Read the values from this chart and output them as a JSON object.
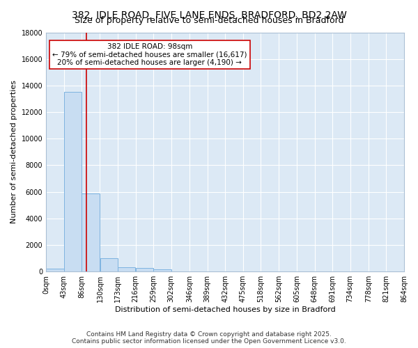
{
  "title": "382, IDLE ROAD, FIVE LANE ENDS, BRADFORD, BD2 2AW",
  "subtitle": "Size of property relative to semi-detached houses in Bradford",
  "xlabel": "Distribution of semi-detached houses by size in Bradford",
  "ylabel": "Number of semi-detached properties",
  "bin_edges": [
    0,
    43,
    86,
    130,
    173,
    216,
    259,
    302,
    346,
    389,
    432,
    475,
    518,
    562,
    605,
    648,
    691,
    734,
    778,
    821,
    864
  ],
  "bin_labels": [
    "0sqm",
    "43sqm",
    "86sqm",
    "130sqm",
    "173sqm",
    "216sqm",
    "259sqm",
    "302sqm",
    "346sqm",
    "389sqm",
    "432sqm",
    "475sqm",
    "518sqm",
    "562sqm",
    "605sqm",
    "648sqm",
    "691sqm",
    "734sqm",
    "778sqm",
    "821sqm",
    "864sqm"
  ],
  "bar_heights": [
    200,
    13500,
    5900,
    1000,
    300,
    290,
    150,
    0,
    0,
    0,
    0,
    0,
    0,
    0,
    0,
    0,
    0,
    0,
    0,
    0
  ],
  "bar_color": "#c8ddf2",
  "bar_edge_color": "#7db3e0",
  "property_size": 98,
  "vline_color": "#cc0000",
  "ylim": [
    0,
    18000
  ],
  "yticks": [
    0,
    2000,
    4000,
    6000,
    8000,
    10000,
    12000,
    14000,
    16000,
    18000
  ],
  "annotation_text": "382 IDLE ROAD: 98sqm\n← 79% of semi-detached houses are smaller (16,617)\n20% of semi-detached houses are larger (4,190) →",
  "annotation_box_color": "#ffffff",
  "annotation_box_edge": "#cc0000",
  "footer_line1": "Contains HM Land Registry data © Crown copyright and database right 2025.",
  "footer_line2": "Contains public sector information licensed under the Open Government Licence v3.0.",
  "plot_bg_color": "#dce9f5",
  "fig_bg_color": "#ffffff",
  "grid_color": "#ffffff",
  "title_fontsize": 10,
  "subtitle_fontsize": 9,
  "label_fontsize": 8,
  "tick_fontsize": 7,
  "footer_fontsize": 6.5,
  "annot_fontsize": 7.5
}
